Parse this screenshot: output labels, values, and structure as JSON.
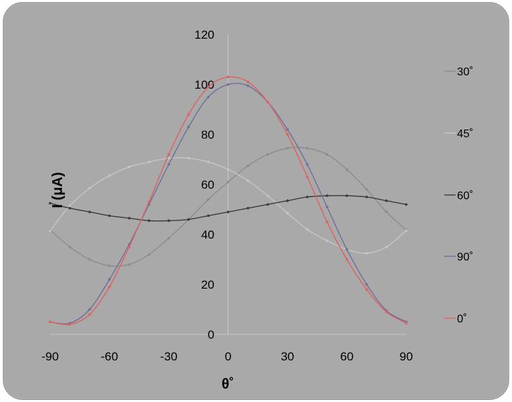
{
  "chart_data": {
    "type": "line",
    "title": "",
    "xlabel": "θ˚",
    "ylabel": "I (μA)",
    "xlim": [
      -90,
      90
    ],
    "ylim": [
      0,
      120
    ],
    "x_ticks": [
      -90,
      -60,
      -30,
      0,
      30,
      60,
      90
    ],
    "y_ticks": [
      0,
      20,
      40,
      60,
      80,
      100,
      120
    ],
    "grid": false,
    "legend_position": "right",
    "series": [
      {
        "name": "30˚",
        "color": "#8c8c8c",
        "points": [
          [
            -90,
            41.8
          ],
          [
            -80,
            35
          ],
          [
            -70,
            30
          ],
          [
            -60,
            27.5
          ],
          [
            -50,
            28
          ],
          [
            -40,
            32
          ],
          [
            -30,
            38.5
          ],
          [
            -20,
            46
          ],
          [
            -10,
            54
          ],
          [
            0,
            61
          ],
          [
            10,
            67.5
          ],
          [
            20,
            72
          ],
          [
            30,
            74.5
          ],
          [
            40,
            74.5
          ],
          [
            50,
            72
          ],
          [
            60,
            66
          ],
          [
            70,
            58
          ],
          [
            80,
            49
          ],
          [
            90,
            41.8
          ]
        ]
      },
      {
        "name": "45˚",
        "color": "#c6c6c6",
        "points": [
          [
            -90,
            41.5
          ],
          [
            -80,
            51.5
          ],
          [
            -70,
            58.5
          ],
          [
            -60,
            63.5
          ],
          [
            -50,
            67
          ],
          [
            -40,
            69
          ],
          [
            -30,
            70.5
          ],
          [
            -20,
            70.5
          ],
          [
            -10,
            69
          ],
          [
            0,
            66
          ],
          [
            10,
            61.5
          ],
          [
            20,
            55.5
          ],
          [
            30,
            48.5
          ],
          [
            40,
            42
          ],
          [
            50,
            37.5
          ],
          [
            60,
            34
          ],
          [
            70,
            32.5
          ],
          [
            80,
            35
          ],
          [
            90,
            41.5
          ]
        ]
      },
      {
        "name": "60˚",
        "color": "#3d3d3d",
        "points": [
          [
            -90,
            52.5
          ],
          [
            -80,
            50.5
          ],
          [
            -70,
            49
          ],
          [
            -60,
            47.5
          ],
          [
            -50,
            46.5
          ],
          [
            -40,
            45.5
          ],
          [
            -30,
            45.5
          ],
          [
            -20,
            46
          ],
          [
            -10,
            47.5
          ],
          [
            0,
            49
          ],
          [
            10,
            50.5
          ],
          [
            20,
            52
          ],
          [
            30,
            53.5
          ],
          [
            40,
            55
          ],
          [
            50,
            55.5
          ],
          [
            60,
            55.5
          ],
          [
            70,
            55
          ],
          [
            80,
            53.5
          ],
          [
            90,
            52
          ]
        ]
      },
      {
        "name": "90˚",
        "color": "#6f6f98",
        "points": [
          [
            -90,
            5
          ],
          [
            -80,
            4.5
          ],
          [
            -70,
            10
          ],
          [
            -60,
            22
          ],
          [
            -50,
            36
          ],
          [
            -40,
            52
          ],
          [
            -30,
            68
          ],
          [
            -20,
            83
          ],
          [
            -10,
            95
          ],
          [
            0,
            100
          ],
          [
            10,
            99.5
          ],
          [
            20,
            93
          ],
          [
            30,
            82
          ],
          [
            40,
            68
          ],
          [
            50,
            51
          ],
          [
            60,
            34
          ],
          [
            70,
            20
          ],
          [
            80,
            9.5
          ],
          [
            90,
            5
          ]
        ]
      },
      {
        "name": "0˚",
        "color": "#e06060",
        "points": [
          [
            -90,
            5
          ],
          [
            -80,
            4
          ],
          [
            -70,
            8
          ],
          [
            -60,
            19
          ],
          [
            -50,
            35
          ],
          [
            -40,
            53
          ],
          [
            -30,
            72
          ],
          [
            -20,
            88
          ],
          [
            -10,
            99
          ],
          [
            0,
            103
          ],
          [
            10,
            101
          ],
          [
            20,
            93
          ],
          [
            30,
            80
          ],
          [
            40,
            63
          ],
          [
            50,
            45
          ],
          [
            60,
            30
          ],
          [
            70,
            18
          ],
          [
            80,
            9
          ],
          [
            90,
            4.5
          ]
        ]
      }
    ]
  }
}
